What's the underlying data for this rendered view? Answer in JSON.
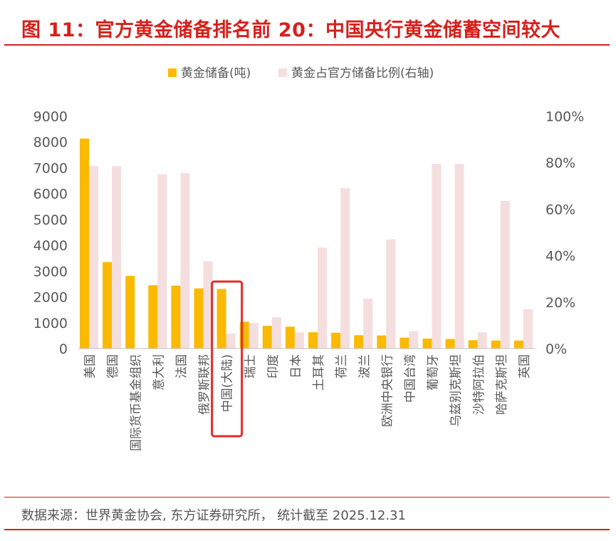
{
  "header": {
    "title": "图 11：官方黄金储备排名前 20：中国央行黄金储蓄空间较大"
  },
  "footer": {
    "source": "数据来源：世界黄金协会, 东方证券研究所， 统计截至 2025.12.31"
  },
  "colors": {
    "title": "#d6201c",
    "bar_reserve": "#fbb900",
    "bar_ratio": "#f5dede",
    "highlight": "#e52b2b",
    "axis_text": "#595959"
  },
  "chart_data": {
    "type": "bar",
    "title": "官方黄金储备排名前 20：中国央行黄金储蓄空间较大",
    "categories": [
      "美国",
      "德国",
      "国际货币基金组织",
      "意大利",
      "法国",
      "俄罗斯联邦",
      "中国(大陆)",
      "瑞士",
      "印度",
      "日本",
      "土耳其",
      "荷兰",
      "波兰",
      "欧洲中央银行",
      "中国台湾",
      "葡萄牙",
      "乌兹别克斯坦",
      "沙特阿拉伯",
      "哈萨克斯坦",
      "英国"
    ],
    "series": [
      {
        "name": "黄金储备(吨)",
        "axis": "left",
        "values": [
          8133,
          3350,
          2814,
          2452,
          2437,
          2330,
          2306,
          1040,
          880,
          846,
          630,
          612,
          515,
          507,
          424,
          383,
          370,
          323,
          310,
          310
        ]
      },
      {
        "name": "黄金占官方储备比例(右轴)",
        "axis": "right",
        "unit": "%",
        "values": [
          78.5,
          78.5,
          null,
          75.0,
          75.5,
          37.5,
          6.5,
          11.0,
          13.5,
          7.0,
          43.5,
          69.0,
          21.5,
          47.0,
          7.5,
          79.5,
          79.5,
          7.0,
          63.5,
          17.0
        ]
      }
    ],
    "y_left": {
      "ylim": [
        0,
        9000
      ],
      "ticks": [
        "0",
        "1000",
        "2000",
        "3000",
        "4000",
        "5000",
        "6000",
        "7000",
        "8000",
        "9000"
      ]
    },
    "y_right": {
      "ylim": [
        0,
        100
      ],
      "ticks": [
        "0%",
        "20%",
        "40%",
        "60%",
        "80%",
        "100%"
      ]
    },
    "legend": [
      "黄金储备(吨)",
      "黄金占官方储备比例(右轴)"
    ],
    "legend_position": "top-center",
    "grid": false,
    "highlight_category": "中国(大陆)"
  }
}
